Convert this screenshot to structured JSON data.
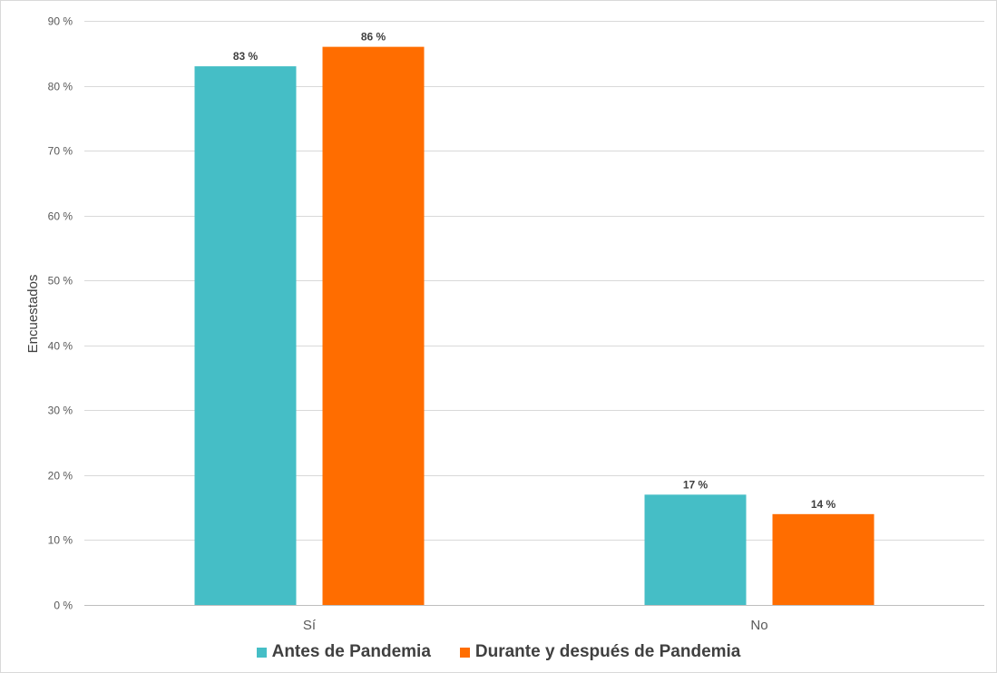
{
  "chart_data": {
    "type": "bar",
    "categories": [
      "Sí",
      "No"
    ],
    "series": [
      {
        "name": "Antes de Pandemia",
        "values": [
          83,
          17
        ],
        "labels": [
          "83 %",
          "17 %"
        ],
        "color": "#45BEC6"
      },
      {
        "name": "Durante y después de Pandemia",
        "values": [
          86,
          14
        ],
        "labels": [
          "86 %",
          "14 %"
        ],
        "color": "#FF6D00"
      }
    ],
    "title": "",
    "xlabel": "",
    "ylabel": "Encuestados",
    "ylim": [
      0,
      90
    ],
    "yticks": [
      0,
      10,
      20,
      30,
      40,
      50,
      60,
      70,
      80,
      90
    ],
    "ytick_labels": [
      "0 %",
      "10 %",
      "20 %",
      "30 %",
      "40 %",
      "50 %",
      "60 %",
      "70 %",
      "80 %",
      "90 %"
    ],
    "grid": true,
    "legend_position": "bottom"
  }
}
